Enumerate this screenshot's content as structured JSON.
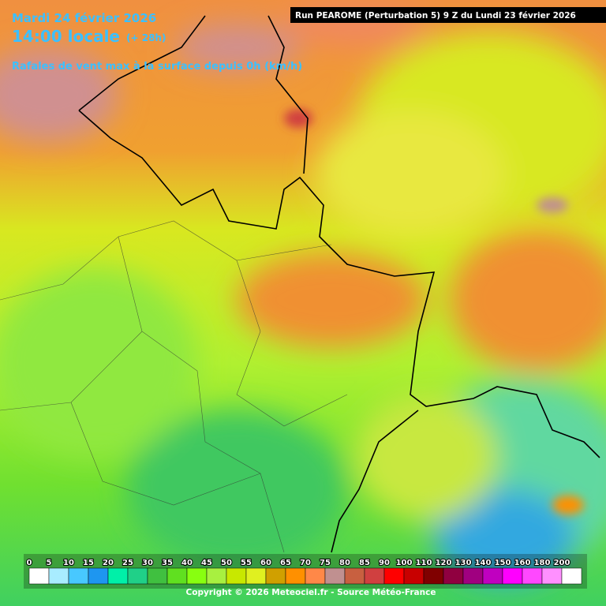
{
  "header": {
    "date": "Mardi 24 février 2026",
    "time": "14:00 locale",
    "lead": "(+ 28h)",
    "subtitle": "Rafales de vent max à la surface depuis 0h (km/h)",
    "run": "Run PEAROME (Perturbation 5) 9 Z du Lundi 23 février 2026"
  },
  "legend": {
    "items": [
      {
        "value": 0,
        "color": "#ffffff"
      },
      {
        "value": 5,
        "color": "#a8ecff"
      },
      {
        "value": 10,
        "color": "#48c8ff"
      },
      {
        "value": 15,
        "color": "#1e96f0"
      },
      {
        "value": 20,
        "color": "#00f0a8"
      },
      {
        "value": 25,
        "color": "#20d088"
      },
      {
        "value": 30,
        "color": "#40c040"
      },
      {
        "value": 35,
        "color": "#60e020"
      },
      {
        "value": 40,
        "color": "#88ff10"
      },
      {
        "value": 45,
        "color": "#a8f040"
      },
      {
        "value": 50,
        "color": "#c8e800"
      },
      {
        "value": 55,
        "color": "#e0f020"
      },
      {
        "value": 60,
        "color": "#d0a000"
      },
      {
        "value": 65,
        "color": "#ff9000"
      },
      {
        "value": 70,
        "color": "#ff8848"
      },
      {
        "value": 75,
        "color": "#c09090"
      },
      {
        "value": 80,
        "color": "#c86040"
      },
      {
        "value": 85,
        "color": "#d04040"
      },
      {
        "value": 90,
        "color": "#ff0000"
      },
      {
        "value": 100,
        "color": "#c80000"
      },
      {
        "value": 110,
        "color": "#800000"
      },
      {
        "value": 120,
        "color": "#900040"
      },
      {
        "value": 130,
        "color": "#a00080"
      },
      {
        "value": 140,
        "color": "#c000c0"
      },
      {
        "value": 150,
        "color": "#ff00ff"
      },
      {
        "value": 160,
        "color": "#ff48ff"
      },
      {
        "value": 180,
        "color": "#ff90ff"
      },
      {
        "value": 200,
        "color": "#ffffff"
      }
    ]
  },
  "footer": {
    "copyright": "Copyright © 2026 Meteociel.fr - Source Météo-France"
  }
}
